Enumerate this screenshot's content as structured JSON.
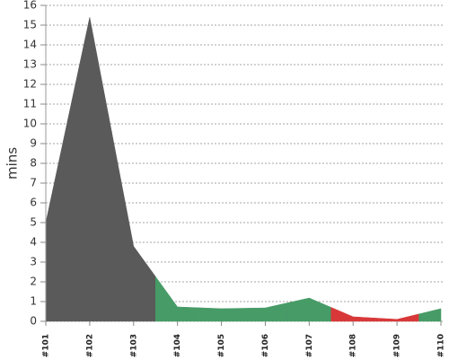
{
  "chart_data": {
    "type": "area",
    "y_label": "mins",
    "categories": [
      "#101",
      "#102",
      "#103",
      "#104",
      "#105",
      "#106",
      "#107",
      "#108",
      "#109",
      "#110"
    ],
    "values": [
      5.0,
      15.4,
      3.8,
      0.73,
      0.64,
      0.68,
      1.18,
      0.23,
      0.1,
      0.64
    ],
    "colors": [
      "#5a5a5a",
      "#5a5a5a",
      "#5a5a5a",
      "#479b67",
      "#479b67",
      "#479b67",
      "#479b67",
      "#d83838",
      "#d83838",
      "#479b67"
    ],
    "ylim": [
      0,
      16
    ],
    "yticks": [
      0,
      1,
      2,
      3,
      4,
      5,
      6,
      7,
      8,
      9,
      10,
      11,
      12,
      13,
      14,
      15,
      16
    ],
    "grid": true
  }
}
